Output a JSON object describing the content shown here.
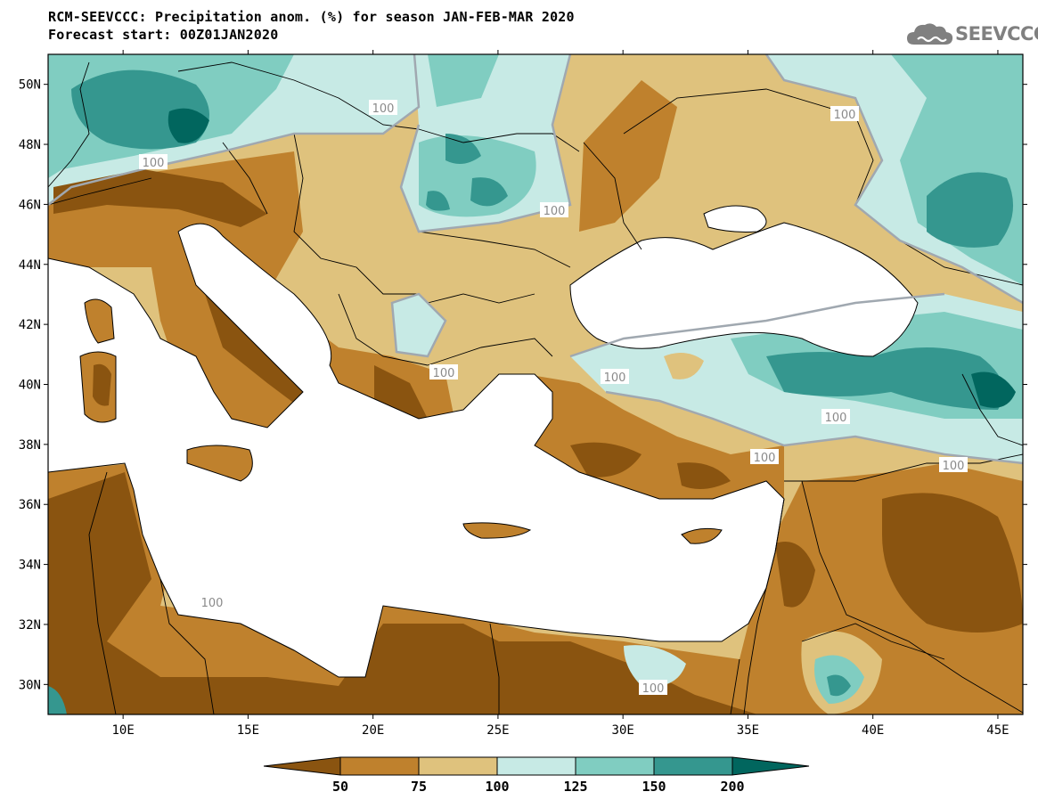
{
  "title_line1": "RCM-SEEVCCC: Precipitation anom. (%) for season JAN-FEB-MAR 2020",
  "title_line2": "Forecast start: 00Z01JAN2020",
  "logo": {
    "text": "SEEVCCC",
    "icon": "cloud-icon",
    "color": "#808080"
  },
  "map": {
    "lon_range": [
      7,
      46
    ],
    "lat_range": [
      29,
      51
    ],
    "lat_ticks": [
      "50N",
      "48N",
      "46N",
      "44N",
      "42N",
      "40N",
      "38N",
      "36N",
      "34N",
      "32N",
      "30N"
    ],
    "lon_ticks": [
      "10E",
      "15E",
      "20E",
      "25E",
      "30E",
      "35E",
      "40E",
      "45E"
    ],
    "contour_labels": [
      "100",
      "100",
      "100",
      "100",
      "100",
      "100",
      "100",
      "100",
      "100",
      "100",
      "100"
    ],
    "sea_color": "#ffffff",
    "border_color": "#000000"
  },
  "colorbar": {
    "labels": [
      "50",
      "75",
      "100",
      "125",
      "150",
      "200"
    ],
    "colors": [
      "#8a5410",
      "#bf812d",
      "#dfc27d",
      "#c7eae5",
      "#80cdc1",
      "#35978f",
      "#01665e"
    ]
  }
}
